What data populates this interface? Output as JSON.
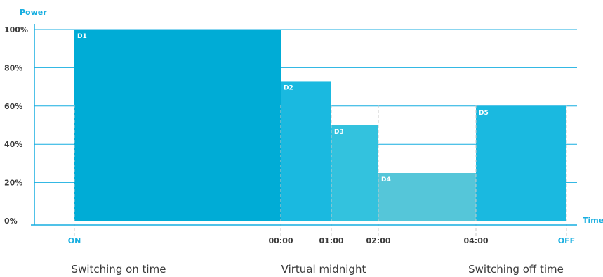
{
  "chart_data": {
    "type": "bar",
    "ylabel": "Power",
    "xlabel": "Time",
    "ylim": [
      0,
      100
    ],
    "y_ticks": [
      "0%",
      "20%",
      "40%",
      "60%",
      "80%",
      "100%"
    ],
    "x_ticks": [
      "ON",
      "00:00",
      "01:00",
      "02:00",
      "04:00",
      "OFF"
    ],
    "grid": true,
    "segments": [
      {
        "label": "D1",
        "start": "ON",
        "end": "00:00",
        "value": 100,
        "color": "#00acd6"
      },
      {
        "label": "D2",
        "start": "00:00",
        "end": "01:00",
        "value": 73,
        "color": "#1ab9e0"
      },
      {
        "label": "D3",
        "start": "01:00",
        "end": "02:00",
        "value": 50,
        "color": "#33c2de"
      },
      {
        "label": "D4",
        "start": "02:00",
        "end": "04:00",
        "value": 25,
        "color": "#55c6d9"
      },
      {
        "label": "D5",
        "start": "04:00",
        "end": "OFF",
        "value": 60,
        "color": "#1ab9e0"
      }
    ]
  },
  "captions": {
    "switch_on": "Switching on time",
    "midnight": "Virtual midnight",
    "switch_off": "Switching off time"
  }
}
